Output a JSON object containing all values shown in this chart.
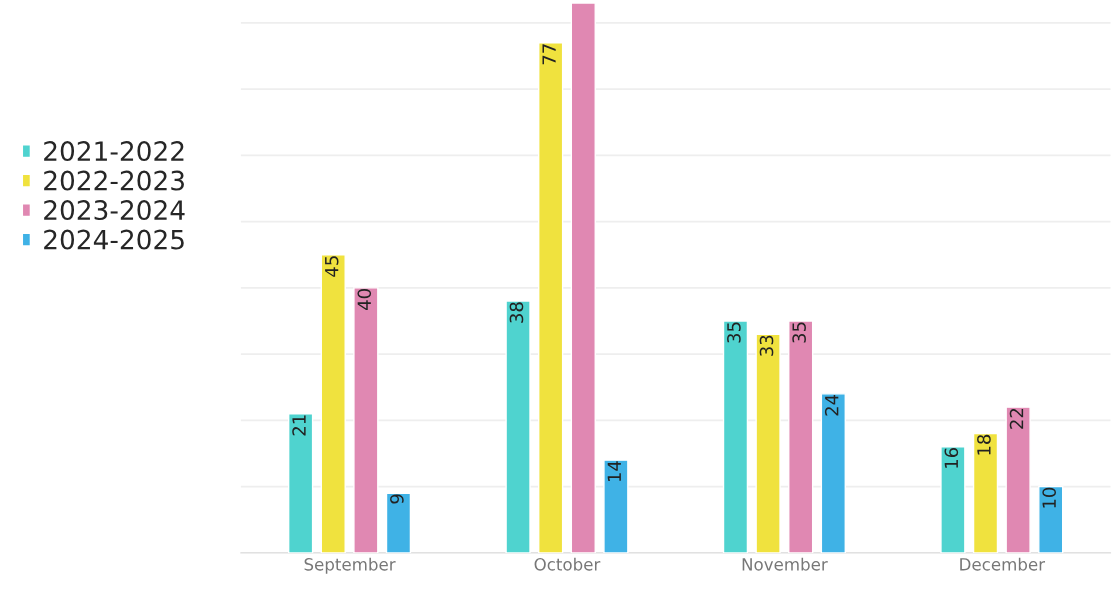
{
  "chart_data": {
    "type": "bar",
    "categories": [
      "September",
      "October",
      "November",
      "December"
    ],
    "series": [
      {
        "name": "2021-2022",
        "color": "#4fd3cf",
        "values": [
          21,
          38,
          35,
          16
        ],
        "value_labels": [
          "21",
          "38",
          "35",
          "16"
        ]
      },
      {
        "name": "2022-2023",
        "color": "#f0e23e",
        "values": [
          45,
          77,
          33,
          18
        ],
        "value_labels": [
          "45",
          "77",
          "33",
          "18"
        ]
      },
      {
        "name": "2023-2024",
        "color": "#e088b2",
        "values": [
          40,
          83,
          35,
          22
        ],
        "value_labels": [
          "40",
          null,
          "35",
          "22"
        ]
      },
      {
        "name": "2024-2025",
        "color": "#3fb2e6",
        "values": [
          9,
          14,
          24,
          10
        ],
        "value_labels": [
          "9",
          "14",
          "24",
          "10"
        ]
      }
    ],
    "ylim": [
      0,
      83
    ],
    "yticks": [
      {
        "value": 0,
        "label": null
      },
      {
        "value": 10,
        "label": null
      },
      {
        "value": 20,
        "label": null
      },
      {
        "value": 30,
        "label": null
      },
      {
        "value": 40,
        "label": null
      },
      {
        "value": 50,
        "label": null
      },
      {
        "value": 60,
        "label": null
      },
      {
        "value": 70,
        "label": null
      },
      {
        "value": 80,
        "label": null
      }
    ],
    "tick_labels": "x",
    "grid": "y",
    "legend": "left"
  }
}
